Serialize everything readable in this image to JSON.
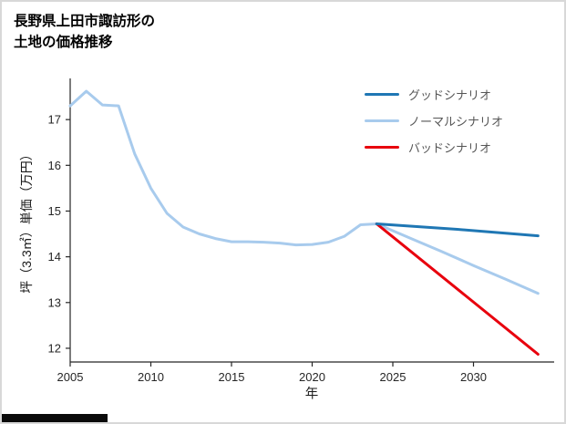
{
  "page": {
    "title_lines": [
      "長野県上田市諏訪形の",
      "土地の価格推移"
    ]
  },
  "chart_data": {
    "type": "line",
    "title": "長野県上田市諏訪形の土地の価格推移",
    "title_lines": [
      "長野県上田市諏訪形の",
      "土地の価格推移"
    ],
    "xlabel": "年",
    "ylabel": "坪（3.3㎡）単価（万円）",
    "xlim": [
      2005,
      2035
    ],
    "ylim": [
      11.7,
      17.9
    ],
    "xticks": [
      2005,
      2010,
      2015,
      2020,
      2025,
      2030
    ],
    "yticks": [
      12,
      13,
      14,
      15,
      16,
      17
    ],
    "grid": false,
    "legend_position": "upper right",
    "axis_color": "#262626",
    "series": [
      {
        "name": "グッドシナリオ",
        "color": "#1f77b4",
        "width": 3,
        "z": 3,
        "x": [
          2024,
          2029,
          2034
        ],
        "y": [
          14.72,
          14.6,
          14.46
        ]
      },
      {
        "name": "ノーマルシナリオ",
        "color": "#a8cbed",
        "width": 3,
        "z": 1,
        "x": [
          2005,
          2006,
          2007,
          2008,
          2009,
          2010,
          2011,
          2012,
          2013,
          2014,
          2015,
          2016,
          2017,
          2018,
          2019,
          2020,
          2021,
          2022,
          2023,
          2024,
          2026,
          2028,
          2030,
          2032,
          2034
        ],
        "y": [
          17.3,
          17.62,
          17.32,
          17.3,
          16.25,
          15.5,
          14.95,
          14.65,
          14.5,
          14.4,
          14.33,
          14.33,
          14.32,
          14.3,
          14.26,
          14.27,
          14.32,
          14.45,
          14.7,
          14.72,
          14.42,
          14.12,
          13.81,
          13.51,
          13.2
        ]
      },
      {
        "name": "バッドシナリオ",
        "color": "#e8000d",
        "width": 3,
        "z": 2,
        "x": [
          2024,
          2034
        ],
        "y": [
          14.72,
          11.87
        ]
      }
    ]
  }
}
